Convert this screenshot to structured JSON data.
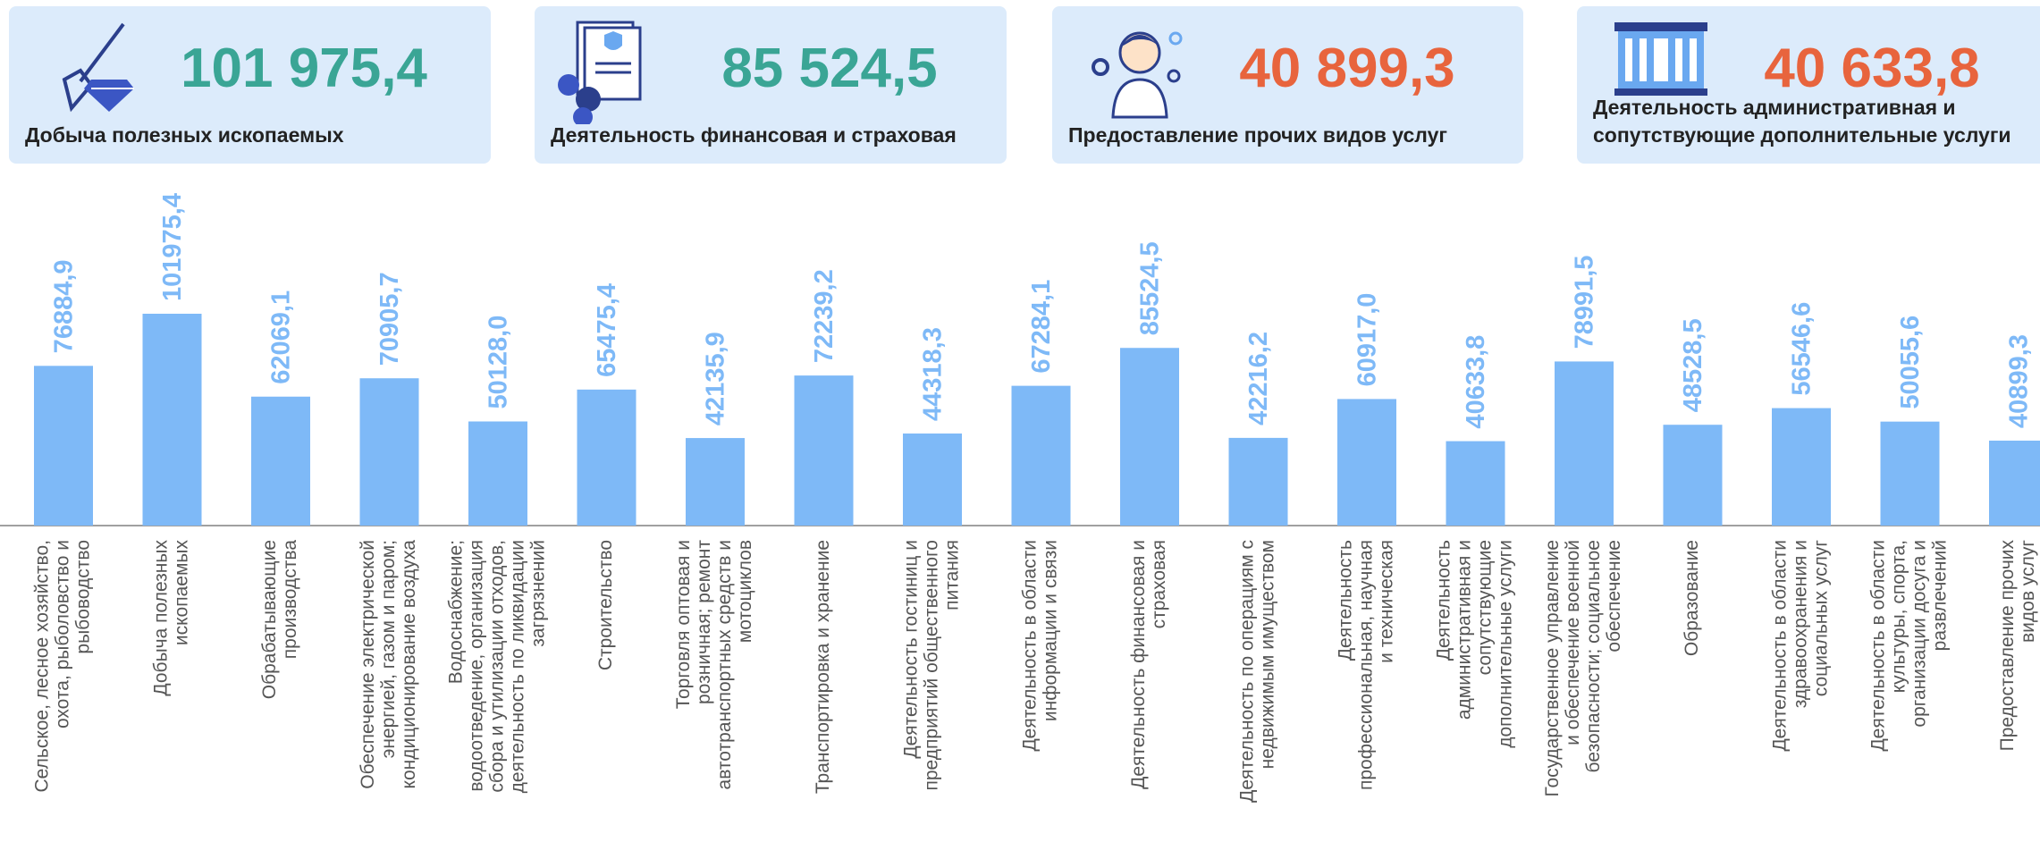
{
  "cards": [
    {
      "value": "101 975,4",
      "label": [
        "Добыча полезных ископаемых"
      ],
      "color": "#3aa595"
    },
    {
      "value": "85 524,5",
      "label": [
        "Деятельность финансовая и страховая"
      ],
      "color": "#3aa595"
    },
    {
      "value": "40 899,3",
      "label": [
        "Предоставление прочих видов услуг"
      ],
      "color": "#e8643d"
    },
    {
      "value": "40 633,8",
      "label": [
        "Деятельность административная и",
        "сопутствующие дополнительные услуги"
      ],
      "color": "#e8643d"
    }
  ],
  "chart_data": {
    "type": "bar",
    "color": "#7eb9f7",
    "label_color": "#7eb9f7",
    "categories": [
      [
        "Сельское, лесное хозяйство,",
        "охота, рыболовство и",
        "рыбоводство"
      ],
      [
        "Добыча полезных",
        "ископаемых"
      ],
      [
        "Обрабатывающие",
        "производства"
      ],
      [
        "Обеспечение электрической",
        "энергией, газом и паром;",
        "кондиционирование воздуха"
      ],
      [
        "Водоснабжение;",
        "водоотведение, организация",
        "сбора и утилизации отходов,",
        "деятельность по ликвидации",
        "загрязнений"
      ],
      [
        "Строительство"
      ],
      [
        "Торговля оптовая и",
        "розничная; ремонт",
        "автотранспортных средств и",
        "мотоциклов"
      ],
      [
        "Транспортировка и хранение"
      ],
      [
        "Деятельность гостиниц и",
        "предприятий общественного",
        "питания"
      ],
      [
        "Деятельность в области",
        "информации и связи"
      ],
      [
        "Деятельность финансовая и",
        "страховая"
      ],
      [
        "Деятельность по операциям с",
        "недвижимым имуществом"
      ],
      [
        "Деятельность",
        "профессиональная, научная",
        "и техническая"
      ],
      [
        "Деятельность",
        "административная и",
        "сопутствующие",
        "дополнительные услуги"
      ],
      [
        "Государственное управление",
        "и обеспечение военной",
        "безопасности; социальное",
        "обеспечение"
      ],
      [
        "Образование"
      ],
      [
        "Деятельность в области",
        "здравоохранения и",
        "социальных услуг"
      ],
      [
        "Деятельность в области",
        "культуры, спорта,",
        "организации досуга и",
        "развлечений"
      ],
      [
        "Предоставление прочих",
        "видов услуг"
      ]
    ],
    "values": [
      76884.9,
      101975.4,
      62069.1,
      70905.7,
      50128.0,
      65475.4,
      42135.9,
      72239.2,
      44318.3,
      67284.1,
      85524.5,
      42216.2,
      60917.0,
      40633.8,
      78991.5,
      48528.5,
      56546.6,
      50055.6,
      40899.3
    ],
    "value_labels": [
      "76884,9",
      "101975,4",
      "62069,1",
      "70905,7",
      "50128,0",
      "65475,4",
      "42135,9",
      "72239,2",
      "44318,3",
      "67284,1",
      "85524,5",
      "42216,2",
      "60917,0",
      "40633,8",
      "78991,5",
      "48528,5",
      "56546,6",
      "50055,6",
      "40899,3"
    ]
  }
}
